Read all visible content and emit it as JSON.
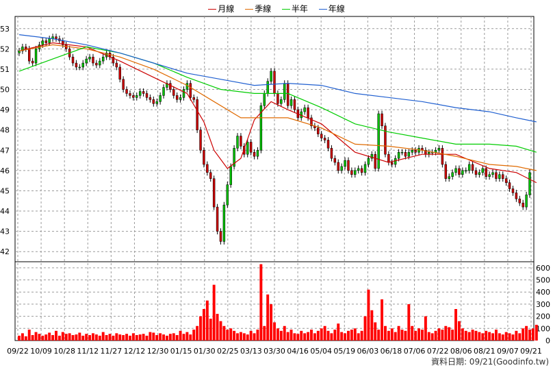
{
  "legend": [
    {
      "label": "月線",
      "color": "#cc0000"
    },
    {
      "label": "季線",
      "color": "#e06a00"
    },
    {
      "label": "半年",
      "color": "#00cc00"
    },
    {
      "label": "年線",
      "color": "#1f5fd0"
    }
  ],
  "footer": {
    "date_label": "資料日期: 09/21",
    "source_label": "(Goodinfo.tw)"
  },
  "colors": {
    "up": "#00c000",
    "down": "#cc0000",
    "volume": "#ff0000",
    "grid": "#9a9a9a"
  },
  "chart_data": [
    {
      "type": "candlestick",
      "title": "",
      "grid": true,
      "legend_position": "top-center",
      "x_tick_labels": [
        "09/22",
        "10/09",
        "10/28",
        "11/12",
        "11/27",
        "12/12",
        "12/30",
        "01/15",
        "01/30",
        "02/25",
        "03/13",
        "03/30",
        "04/16",
        "05/04",
        "05/19",
        "06/03",
        "06/18",
        "07/06",
        "07/22",
        "08/06",
        "08/21",
        "09/07",
        "09/21"
      ],
      "y_ticks": [
        42,
        43,
        44,
        45,
        46,
        47,
        48,
        49,
        50,
        51,
        52,
        53
      ],
      "ylim": [
        41.5,
        53.6
      ],
      "y_axis_side": "left",
      "closes": [
        51.9,
        52.1,
        52.0,
        51.4,
        51.3,
        52.0,
        52.2,
        52.4,
        52.3,
        52.5,
        52.6,
        52.5,
        52.4,
        52.2,
        52.0,
        51.6,
        51.3,
        51.1,
        51.1,
        51.3,
        51.5,
        51.6,
        51.3,
        51.2,
        51.4,
        51.6,
        51.8,
        51.6,
        51.3,
        51.1,
        50.5,
        50.0,
        49.8,
        49.7,
        49.6,
        49.7,
        49.9,
        49.8,
        49.6,
        49.5,
        49.3,
        49.4,
        49.7,
        50.1,
        50.3,
        50.0,
        49.7,
        49.5,
        49.6,
        50.0,
        50.3,
        49.6,
        49.5,
        48.0,
        47.0,
        46.3,
        45.9,
        45.6,
        44.2,
        43.0,
        42.5,
        44.3,
        45.3,
        46.2,
        47.1,
        47.7,
        47.2,
        46.8,
        47.4,
        46.9,
        46.7,
        47.0,
        49.2,
        49.8,
        50.4,
        50.9,
        49.8,
        49.3,
        49.5,
        50.3,
        49.2,
        49.5,
        49.0,
        48.6,
        48.9,
        49.1,
        48.6,
        48.2,
        48.1,
        47.8,
        47.6,
        47.5,
        47.1,
        46.6,
        46.4,
        46.0,
        46.2,
        46.5,
        46.0,
        45.8,
        46.0,
        46.1,
        45.9,
        46.3,
        46.6,
        46.8,
        46.1,
        48.8,
        48.2,
        46.8,
        46.4,
        46.3,
        46.6,
        46.9,
        46.9,
        46.7,
        46.9,
        47.0,
        46.9,
        47.1,
        47.0,
        46.8,
        46.9,
        46.9,
        47.0,
        47.1,
        46.3,
        45.6,
        45.7,
        45.9,
        46.1,
        45.8,
        46.0,
        46.0,
        46.3,
        46.0,
        45.8,
        45.9,
        46.1,
        45.7,
        45.8,
        45.9,
        45.6,
        45.8,
        45.6,
        45.4,
        45.1,
        44.9,
        44.6,
        44.4,
        44.2,
        44.8,
        45.9
      ],
      "up_color_meaning": "close above open",
      "series": [
        {
          "name": "月線",
          "color": "#cc0000",
          "x": [
            0,
            10,
            20,
            30,
            40,
            50,
            55,
            58,
            62,
            66,
            70,
            75,
            80,
            90,
            100,
            110,
            120,
            130,
            140,
            148,
            154
          ],
          "values": [
            51.9,
            52.3,
            52.1,
            51.4,
            50.6,
            49.8,
            48.4,
            47.0,
            46.1,
            46.6,
            48.5,
            49.4,
            49.0,
            48.3,
            46.9,
            46.4,
            46.8,
            46.8,
            46.1,
            45.9,
            45.4
          ]
        },
        {
          "name": "季線",
          "color": "#e06a00",
          "x": [
            0,
            10,
            20,
            30,
            40,
            50,
            58,
            66,
            72,
            80,
            90,
            100,
            110,
            120,
            130,
            140,
            148,
            154
          ],
          "values": [
            51.9,
            52.2,
            52.0,
            51.6,
            51.0,
            50.2,
            49.4,
            48.6,
            48.6,
            48.6,
            48.1,
            47.3,
            47.2,
            47.0,
            46.7,
            46.3,
            46.2,
            46.0
          ]
        },
        {
          "name": "半年",
          "color": "#00cc00",
          "x": [
            0,
            10,
            20,
            30,
            40,
            50,
            60,
            70,
            80,
            90,
            100,
            110,
            120,
            130,
            140,
            148,
            154
          ],
          "values": [
            50.9,
            51.5,
            52.1,
            51.8,
            51.3,
            50.6,
            50.0,
            49.8,
            49.8,
            49.1,
            48.3,
            47.9,
            47.6,
            47.3,
            47.3,
            47.2,
            46.9
          ]
        },
        {
          "name": "年線",
          "color": "#1f5fd0",
          "x": [
            0,
            10,
            20,
            30,
            40,
            50,
            60,
            70,
            80,
            90,
            100,
            110,
            120,
            130,
            140,
            148,
            154
          ],
          "values": [
            52.7,
            52.5,
            52.2,
            51.8,
            51.3,
            50.8,
            50.5,
            50.2,
            50.3,
            50.2,
            49.8,
            49.6,
            49.4,
            49.1,
            48.9,
            48.6,
            48.4
          ]
        }
      ]
    },
    {
      "type": "bar",
      "title": "",
      "grid": true,
      "y_ticks": [
        0,
        100,
        200,
        300,
        400,
        500,
        600
      ],
      "ylim": [
        0,
        650
      ],
      "y_axis_side": "right",
      "values": [
        40,
        60,
        35,
        90,
        45,
        70,
        55,
        40,
        50,
        65,
        45,
        80,
        40,
        70,
        55,
        60,
        45,
        50,
        65,
        40,
        55,
        45,
        60,
        50,
        40,
        70,
        45,
        55,
        40,
        60,
        50,
        45,
        55,
        40,
        60,
        45,
        50,
        55,
        40,
        70,
        65,
        45,
        60,
        50,
        40,
        55,
        60,
        45,
        80,
        55,
        70,
        50,
        90,
        120,
        200,
        260,
        330,
        180,
        460,
        220,
        160,
        120,
        90,
        100,
        80,
        60,
        70,
        60,
        50,
        80,
        60,
        90,
        630,
        120,
        380,
        300,
        150,
        100,
        80,
        120,
        70,
        90,
        60,
        55,
        80,
        60,
        70,
        90,
        60,
        80,
        100,
        120,
        80,
        60,
        90,
        140,
        70,
        60,
        80,
        90,
        100,
        60,
        80,
        200,
        420,
        250,
        150,
        90,
        340,
        120,
        80,
        100,
        70,
        120,
        90,
        80,
        300,
        120,
        80,
        100,
        90,
        200,
        70,
        60,
        80,
        100,
        90,
        120,
        110,
        90,
        260,
        160,
        100,
        80,
        70,
        90,
        80,
        70,
        60,
        80,
        70,
        60,
        90,
        60,
        50,
        70,
        60,
        50,
        80,
        60,
        100,
        120,
        90,
        100,
        130
      ]
    }
  ]
}
